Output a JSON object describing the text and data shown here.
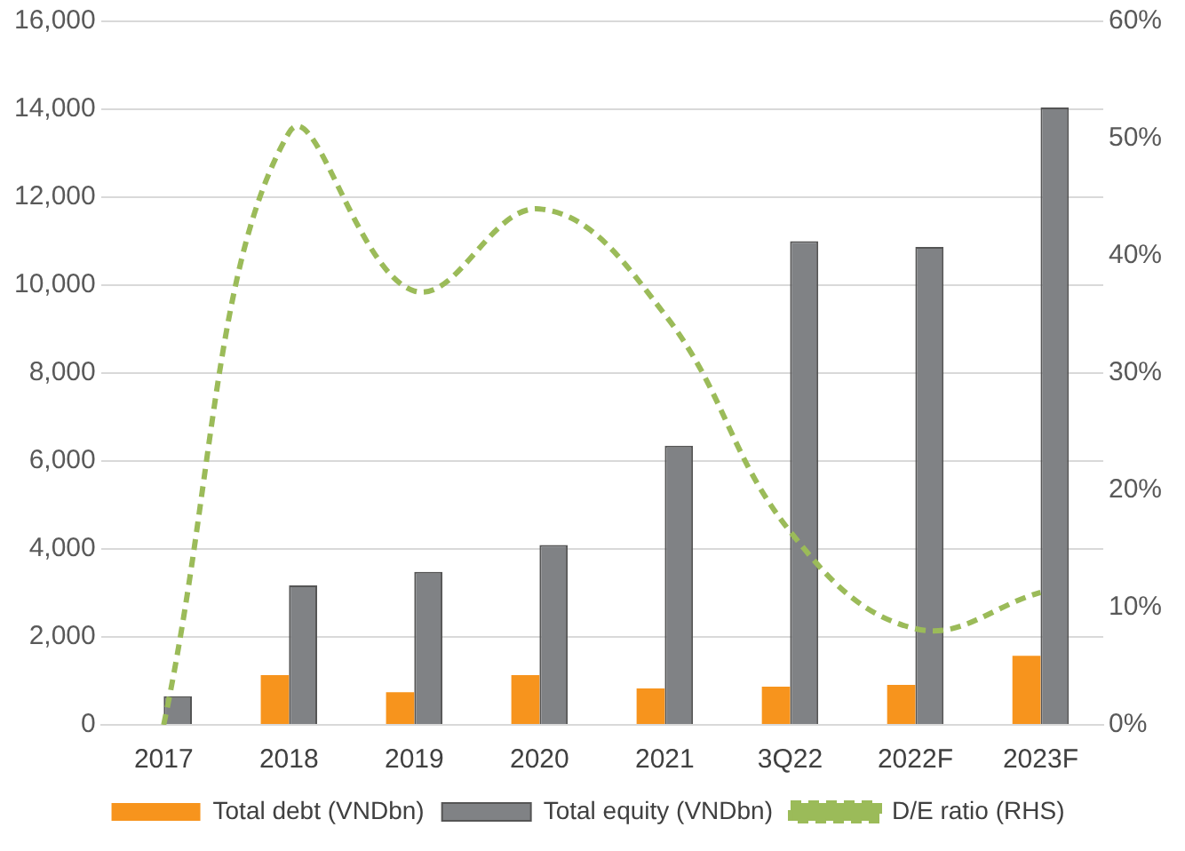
{
  "chart_data": {
    "type": "bar",
    "categories": [
      "2017",
      "2018",
      "2019",
      "2020",
      "2021",
      "3Q22",
      "2022F",
      "2023F"
    ],
    "series": [
      {
        "name": "Total debt (VNDbn)",
        "color": "#f7941d",
        "values": [
          0,
          1130,
          740,
          1130,
          830,
          870,
          910,
          1570
        ]
      },
      {
        "name": "Total equity (VNDbn)",
        "color": "#808285",
        "values": [
          650,
          3170,
          3480,
          4090,
          6350,
          11000,
          10870,
          14040
        ]
      },
      {
        "name": "D/E ratio (RHS)",
        "type": "line",
        "axis": "y2",
        "color": "#9bbb59",
        "line_style": "dashed",
        "values": [
          0,
          50.5,
          37,
          44,
          35,
          16.5,
          8.2,
          11.3
        ]
      }
    ],
    "ylim": [
      0,
      16000
    ],
    "yticks": [
      0,
      {
        "value": 2000,
        "label": "2,000"
      },
      {
        "value": 4000,
        "label": "4,000"
      },
      {
        "value": 6000,
        "label": "6,000"
      },
      {
        "value": 8000,
        "label": "8,000"
      },
      {
        "value": 10000,
        "label": "10,000"
      },
      {
        "value": 12000,
        "label": "12,000"
      },
      {
        "value": 14000,
        "label": "14,000"
      },
      {
        "value": 16000,
        "label": "16,000"
      }
    ],
    "y2lim": [
      0,
      60
    ],
    "y2ticks": [
      {
        "value": 0,
        "label": "0%"
      },
      {
        "value": 10,
        "label": "10%"
      },
      {
        "value": 20,
        "label": "20%"
      },
      {
        "value": 30,
        "label": "30%"
      },
      {
        "value": 40,
        "label": "40%"
      },
      {
        "value": 50,
        "label": "50%"
      },
      {
        "value": 60,
        "label": "60%"
      }
    ],
    "grid": "y",
    "legend": "bottom",
    "marker": "none"
  }
}
